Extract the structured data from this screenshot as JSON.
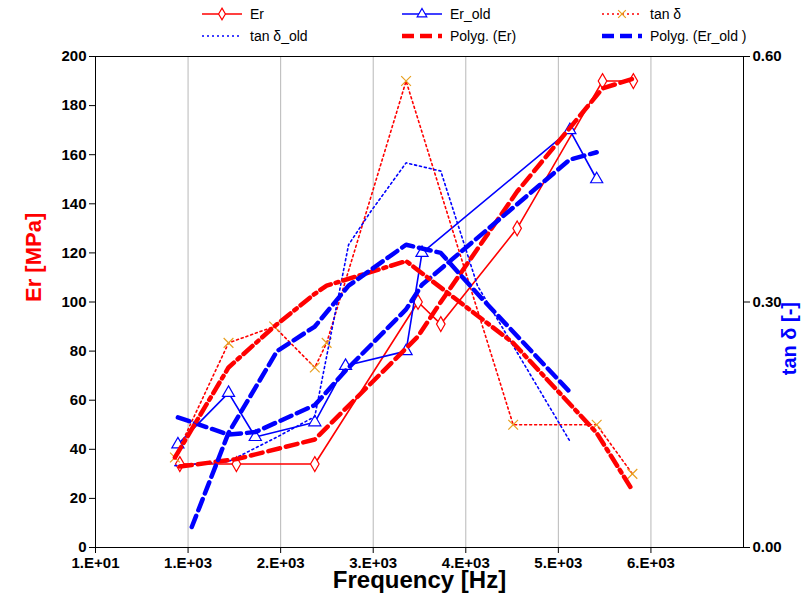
{
  "chart_data": {
    "type": "line",
    "xlabel": "Frequency [Hz]",
    "ylabel": "Er [MPa]",
    "y2label": "tan δ [-]",
    "xlim": [
      10,
      7010
    ],
    "xticks": [
      {
        "value": 10,
        "label": "1.E+01"
      },
      {
        "value": 1010,
        "label": "1.E+03"
      },
      {
        "value": 2010,
        "label": "2.E+03"
      },
      {
        "value": 3010,
        "label": "3.E+03"
      },
      {
        "value": 4010,
        "label": "4.E+03"
      },
      {
        "value": 5010,
        "label": "5.E+03"
      },
      {
        "value": 6010,
        "label": "6.E+03"
      }
    ],
    "ylim": [
      0,
      200
    ],
    "yticks": [
      0,
      20,
      40,
      60,
      80,
      100,
      120,
      140,
      160,
      180,
      200
    ],
    "y2lim": [
      0,
      0.6
    ],
    "y2ticks": [
      {
        "value": 0,
        "label": "0.00"
      },
      {
        "value": 0.3,
        "label": "0.30"
      },
      {
        "value": 0.6,
        "label": "0.60"
      }
    ],
    "grid": "x",
    "legend": "top",
    "series": [
      {
        "name": "Er",
        "color": "#ff0000",
        "marker": "diamond",
        "line_style": "solid",
        "x": [
          921,
          1532,
          2379,
          3494,
          3740,
          4565,
          5487,
          5820
        ],
        "values": [
          34,
          34,
          34,
          100,
          91,
          130,
          190,
          190
        ]
      },
      {
        "name": "Er_old",
        "color": "#0000ff",
        "marker": "triangle",
        "line_style": "solid",
        "x": [
          900,
          1447,
          1736,
          2379,
          2711,
          3365,
          3537,
          5134,
          5424
        ],
        "values": [
          42,
          63,
          45,
          51,
          74,
          80,
          120,
          170,
          150
        ]
      },
      {
        "name": "tan δ",
        "color": "#ff0000",
        "marker": "x",
        "line_style": "dotted",
        "axis": "y2",
        "x": [
          868,
          1447,
          1940,
          2379,
          2507,
          3365,
          4522,
          5424,
          5810
        ],
        "values": [
          0.11,
          0.25,
          0.27,
          0.22,
          0.25,
          0.57,
          0.15,
          0.15,
          0.09
        ]
      },
      {
        "name": "tan δ_old",
        "color": "#0000ff",
        "marker": "none",
        "line_style": "dotted",
        "axis": "y2",
        "x": [
          868,
          1447,
          1972,
          2379,
          2744,
          2980,
          3365,
          3740,
          4136,
          5134
        ],
        "values": [
          0.1,
          0.105,
          0.135,
          0.16,
          0.37,
          0.41,
          0.47,
          0.46,
          0.32,
          0.13
        ]
      },
      {
        "name": "Polyg. (Er)",
        "color": "#ff0000",
        "marker": "none",
        "line_style": "dashed",
        "x": [
          921,
          1532,
          2379,
          3494,
          3740,
          4565,
          5487,
          5820
        ],
        "values": [
          33,
          36,
          44,
          86,
          100,
          145,
          187,
          191
        ]
      },
      {
        "name": "Polyg. (Er_old )",
        "color": "#0000ff",
        "marker": "none",
        "line_style": "dashed",
        "x": [
          900,
          1447,
          1736,
          2379,
          2711,
          3365,
          3537,
          5134,
          5424
        ],
        "values": [
          53,
          46,
          47,
          58,
          72,
          97,
          107,
          158,
          161
        ]
      },
      {
        "color": "#ff0000",
        "marker": "none",
        "line_style": "dashdot",
        "axis": "y2",
        "x": [
          868,
          1447,
          1940,
          2379,
          2507,
          3365,
          4522,
          5424,
          5810
        ],
        "values": [
          0.11,
          0.22,
          0.27,
          0.31,
          0.32,
          0.35,
          0.25,
          0.14,
          0.07
        ]
      },
      {
        "color": "#0000ff",
        "marker": "none",
        "line_style": "dashed",
        "axis": "y2",
        "x": [
          1050,
          1447,
          1972,
          2379,
          2744,
          3365,
          3740,
          4136,
          5134
        ],
        "values": [
          0.025,
          0.14,
          0.24,
          0.27,
          0.32,
          0.37,
          0.36,
          0.31,
          0.19
        ]
      }
    ]
  }
}
